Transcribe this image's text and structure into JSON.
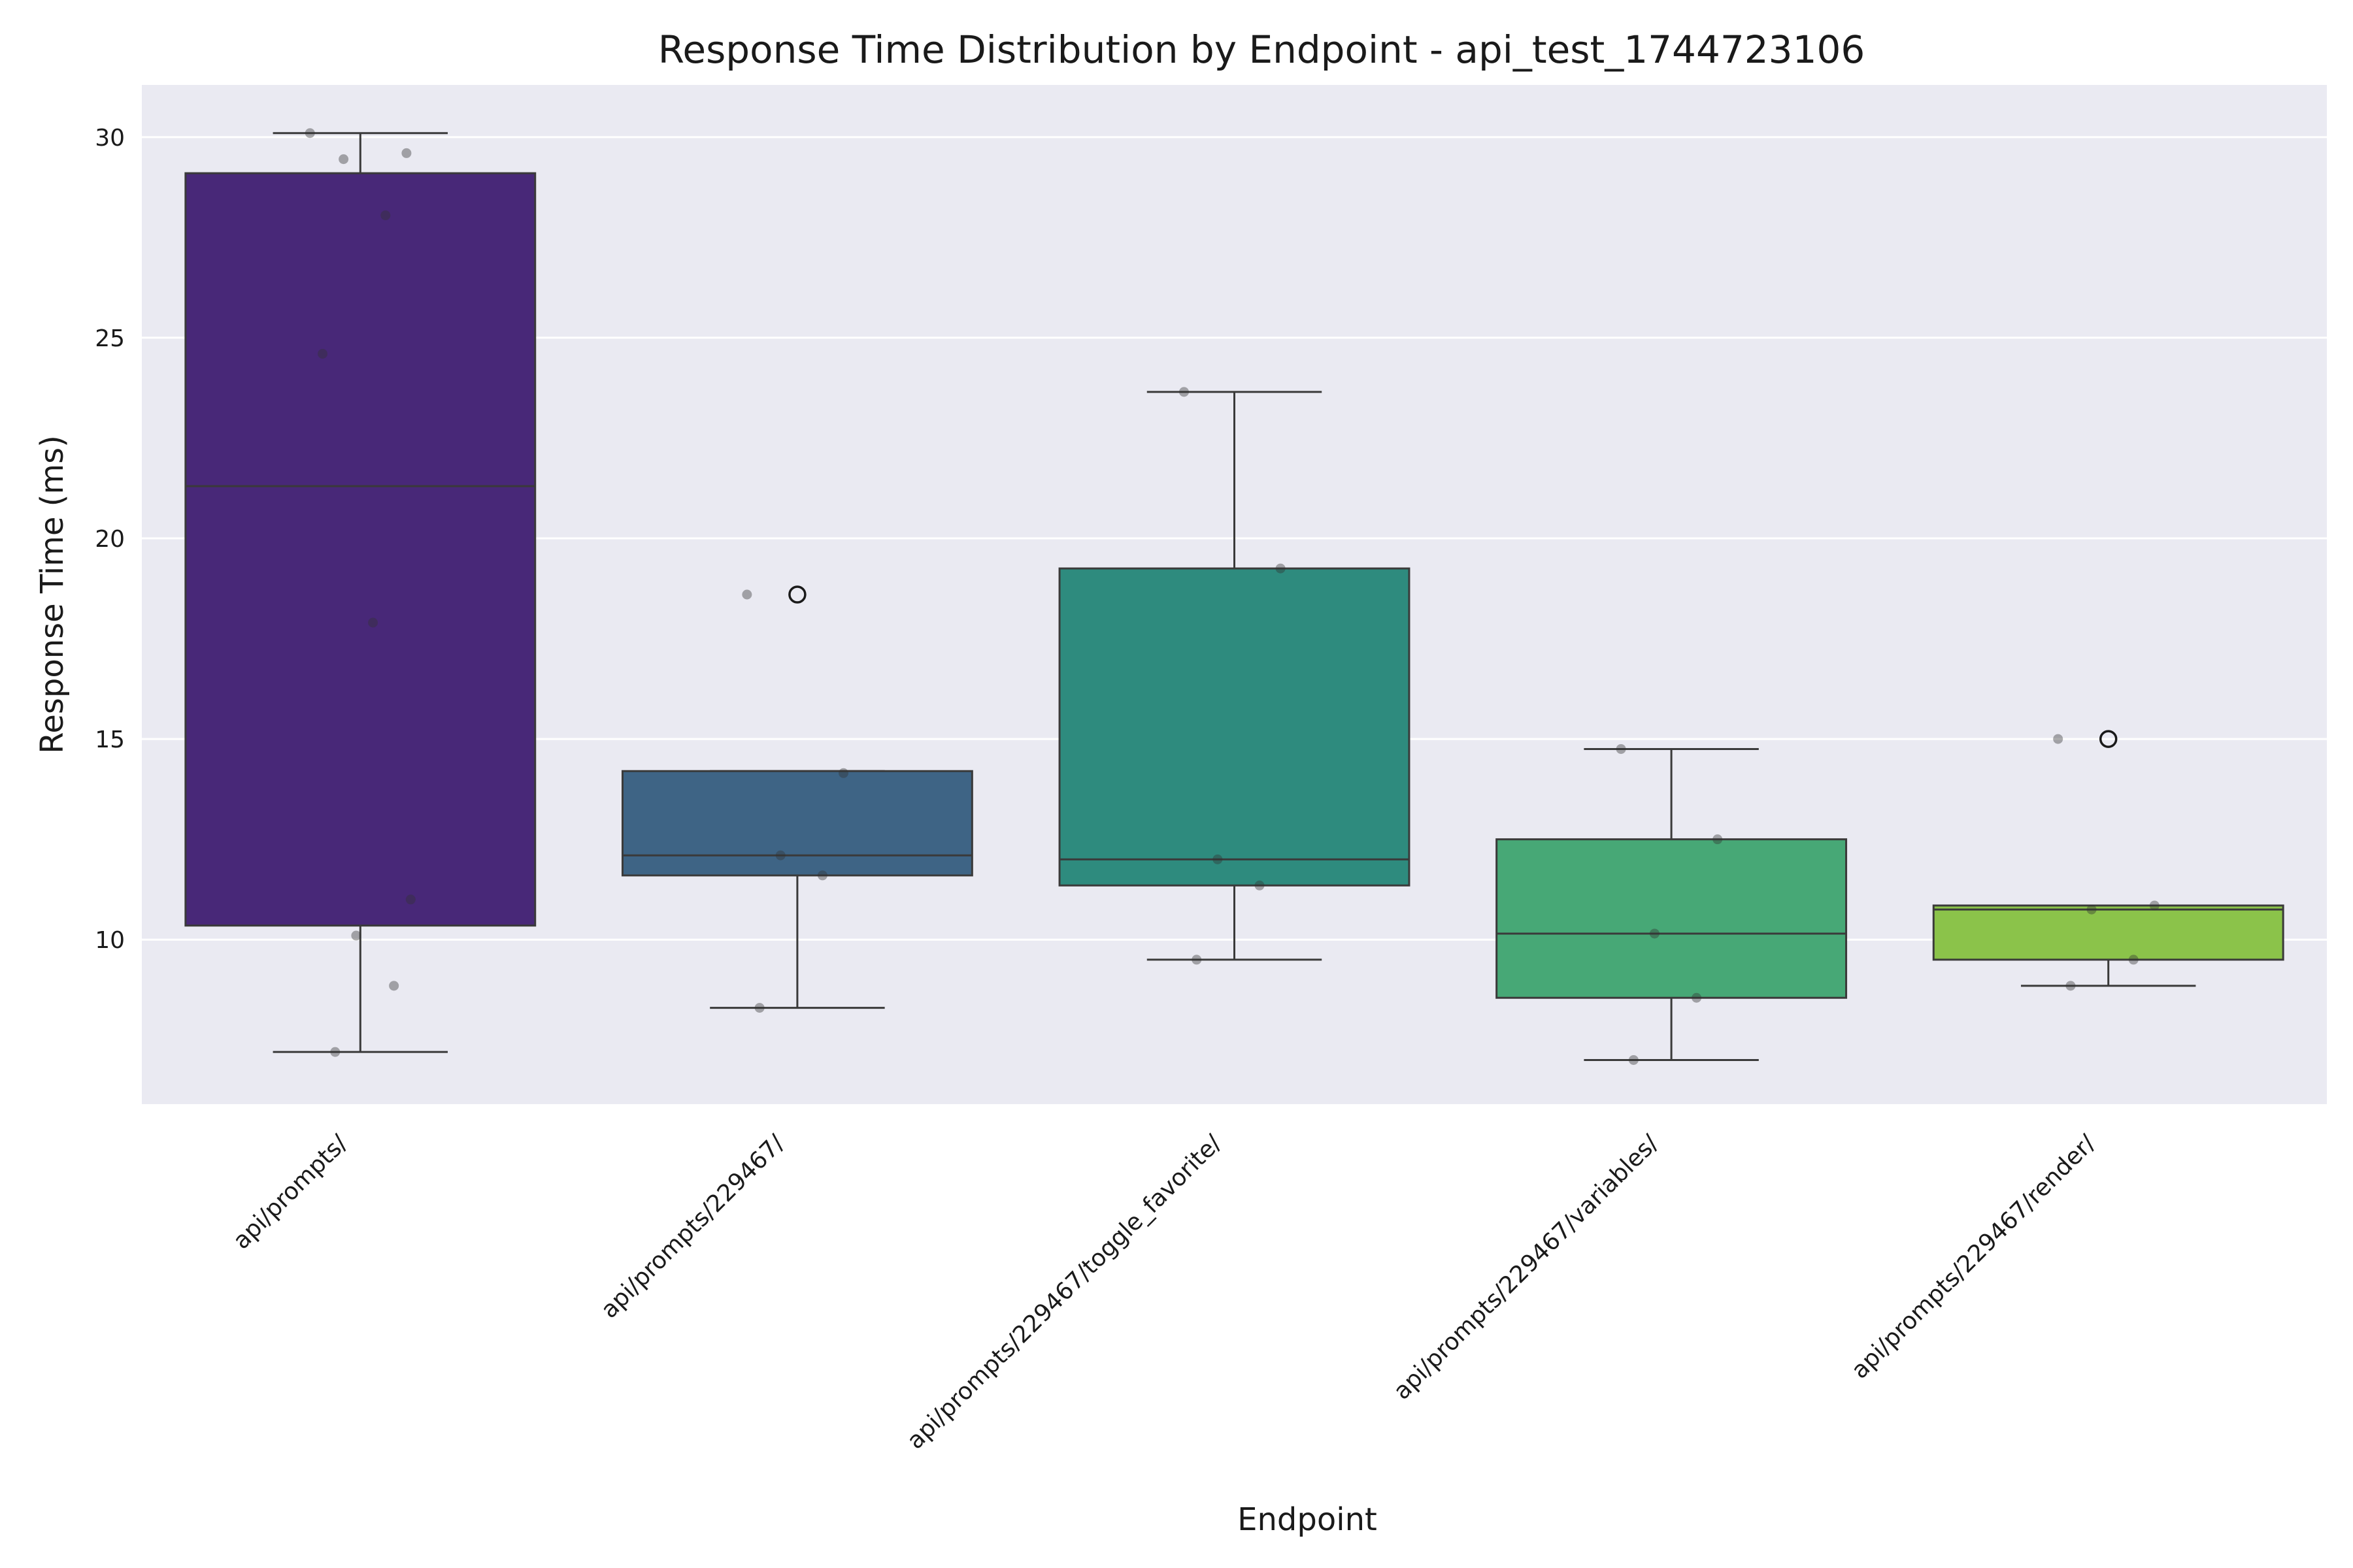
{
  "chart_data": {
    "type": "box",
    "title": "Response Time Distribution by Endpoint - api_test_1744723106",
    "xlabel": "Endpoint",
    "ylabel": "Response Time (ms)",
    "ylim": [
      5.9,
      31.3
    ],
    "yticks": [
      10,
      15,
      20,
      25,
      30
    ],
    "grid": true,
    "background": "#eaeaf2",
    "categories": [
      "api/prompts/",
      "api/prompts/229467/",
      "api/prompts/229467/toggle_favorite/",
      "api/prompts/229467/variables/",
      "api/prompts/229467/render/"
    ],
    "colors": [
      "#482878",
      "#3e6485",
      "#2e8b7e",
      "#47a876",
      "#8bc34a"
    ],
    "boxes": [
      {
        "whisker_low": 7.2,
        "q1": 10.35,
        "median": 21.3,
        "q3": 29.1,
        "whisker_high": 30.1,
        "outliers": []
      },
      {
        "whisker_low": 8.3,
        "q1": 11.6,
        "median": 12.1,
        "q3": 14.2,
        "whisker_high": 14.2,
        "outliers": [
          18.6
        ]
      },
      {
        "whisker_low": 9.5,
        "q1": 11.35,
        "median": 12.0,
        "q3": 19.25,
        "whisker_high": 23.65,
        "outliers": []
      },
      {
        "whisker_low": 7.0,
        "q1": 8.55,
        "median": 10.15,
        "q3": 12.5,
        "whisker_high": 14.75,
        "outliers": []
      },
      {
        "whisker_low": 8.85,
        "q1": 9.5,
        "median": 10.75,
        "q3": 10.85,
        "whisker_high": 10.85,
        "outliers": [
          15.0
        ]
      }
    ],
    "points": [
      [
        30.1,
        29.6,
        29.45,
        28.05,
        24.6,
        17.9,
        11.0,
        10.1,
        8.85,
        7.2
      ],
      [
        18.6,
        14.15,
        12.1,
        11.6,
        8.3
      ],
      [
        23.65,
        19.25,
        12.0,
        11.35,
        9.5
      ],
      [
        14.75,
        12.5,
        10.15,
        8.55,
        7.0
      ],
      [
        15.0,
        10.85,
        10.75,
        9.5,
        8.85
      ]
    ]
  }
}
